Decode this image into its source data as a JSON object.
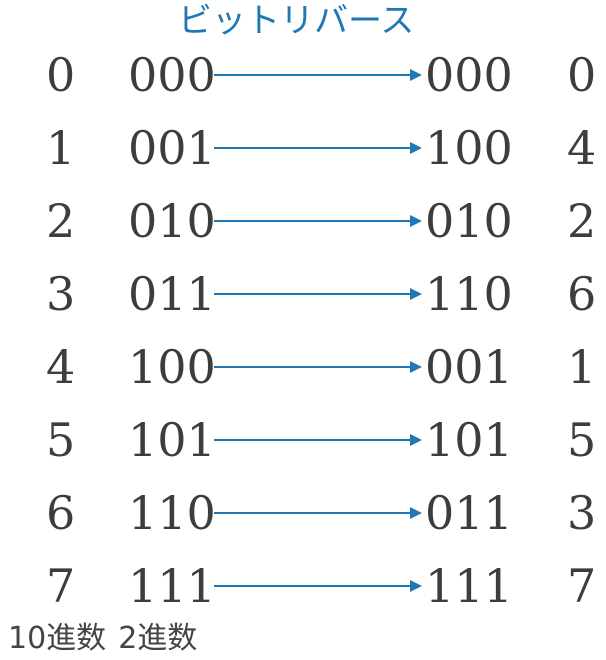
{
  "title": "ビットリバース",
  "accent_color": "#1f77b4",
  "rows": [
    {
      "dec_in": "0",
      "bin_in": "000",
      "bin_out": "000",
      "dec_out": "0"
    },
    {
      "dec_in": "1",
      "bin_in": "001",
      "bin_out": "100",
      "dec_out": "4"
    },
    {
      "dec_in": "2",
      "bin_in": "010",
      "bin_out": "010",
      "dec_out": "2"
    },
    {
      "dec_in": "3",
      "bin_in": "011",
      "bin_out": "110",
      "dec_out": "6"
    },
    {
      "dec_in": "4",
      "bin_in": "100",
      "bin_out": "001",
      "dec_out": "1"
    },
    {
      "dec_in": "5",
      "bin_in": "101",
      "bin_out": "101",
      "dec_out": "5"
    },
    {
      "dec_in": "6",
      "bin_in": "110",
      "bin_out": "011",
      "dec_out": "3"
    },
    {
      "dec_in": "7",
      "bin_in": "111",
      "bin_out": "111",
      "dec_out": "7"
    }
  ],
  "footer": {
    "decimal_label": "10進数",
    "binary_label": "2進数"
  }
}
